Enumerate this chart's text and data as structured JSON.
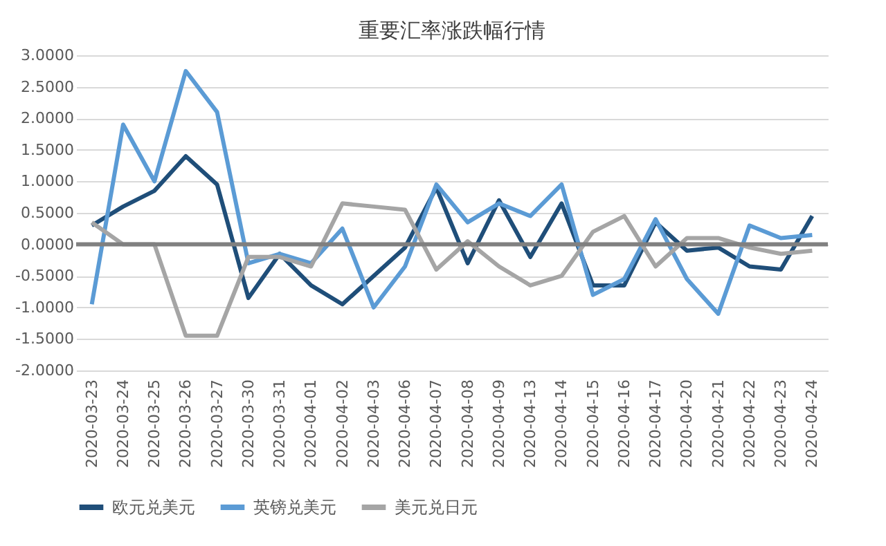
{
  "chart_data": {
    "type": "line",
    "title": "重要汇率涨跌幅行情",
    "categories": [
      "2020-03-23",
      "2020-03-24",
      "2020-03-25",
      "2020-03-26",
      "2020-03-27",
      "2020-03-30",
      "2020-03-31",
      "2020-04-01",
      "2020-04-02",
      "2020-04-03",
      "2020-04-06",
      "2020-04-07",
      "2020-04-08",
      "2020-04-09",
      "2020-04-13",
      "2020-04-14",
      "2020-04-15",
      "2020-04-16",
      "2020-04-17",
      "2020-04-20",
      "2020-04-21",
      "2020-04-22",
      "2020-04-23",
      "2020-04-24"
    ],
    "series": [
      {
        "name": "欧元兑美元",
        "color": "#1f4e79",
        "values": [
          0.3,
          0.6,
          0.85,
          1.4,
          0.95,
          -0.85,
          -0.15,
          -0.65,
          -0.95,
          -0.5,
          -0.05,
          0.9,
          -0.3,
          0.7,
          -0.2,
          0.65,
          -0.65,
          -0.65,
          0.35,
          -0.1,
          -0.05,
          -0.35,
          -0.4,
          0.45
        ]
      },
      {
        "name": "英镑兑美元",
        "color": "#5b9bd5",
        "values": [
          -0.95,
          1.9,
          1.0,
          2.75,
          2.1,
          -0.3,
          -0.15,
          -0.3,
          0.25,
          -1.0,
          -0.35,
          0.95,
          0.35,
          0.65,
          0.45,
          0.95,
          -0.8,
          -0.55,
          0.4,
          -0.55,
          -1.1,
          0.3,
          0.1,
          0.15
        ]
      },
      {
        "name": "美元兑日元",
        "color": "#a5a5a5",
        "values": [
          0.35,
          0.0,
          0.0,
          -1.45,
          -1.45,
          -0.2,
          -0.2,
          -0.35,
          0.65,
          0.6,
          0.55,
          -0.4,
          0.05,
          -0.35,
          -0.65,
          -0.5,
          0.2,
          0.45,
          -0.35,
          0.1,
          0.1,
          -0.05,
          -0.15,
          -0.1
        ]
      }
    ],
    "ylim": [
      -2,
      3
    ],
    "yticks": [
      {
        "value": -2,
        "label": "-2.0000"
      },
      {
        "value": -1.5,
        "label": "-1.5000"
      },
      {
        "value": -1,
        "label": "-1.0000"
      },
      {
        "value": -0.5,
        "label": "-0.5000"
      },
      {
        "value": 0,
        "label": "0.0000"
      },
      {
        "value": 0.5,
        "label": "0.5000"
      },
      {
        "value": 1,
        "label": "1.0000"
      },
      {
        "value": 1.5,
        "label": "1.5000"
      },
      {
        "value": 2,
        "label": "2.0000"
      },
      {
        "value": 2.5,
        "label": "2.5000"
      },
      {
        "value": 3,
        "label": "3.0000"
      }
    ],
    "ref_lines": [
      {
        "axis": "y",
        "value": 0,
        "color": "#808080"
      }
    ],
    "grid": "y",
    "legend": "bottom",
    "marker": "none",
    "line_style": "solid"
  }
}
